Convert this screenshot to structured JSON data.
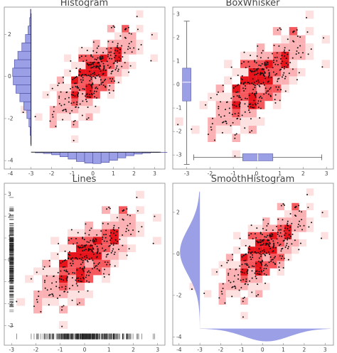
{
  "chart_data": [
    {
      "type": "heatmap",
      "title": "Histogram",
      "marginal": "histogram",
      "xlim": [
        -4.3,
        3.5
      ],
      "ylim": [
        -4.4,
        3.3
      ],
      "xticks": [
        "-4",
        "-3",
        "-2",
        "-1",
        "0",
        "1",
        "2",
        "3"
      ],
      "yticks": [
        "-4",
        "-2",
        "0",
        "2"
      ]
    },
    {
      "type": "heatmap",
      "title": "BoxWhisker",
      "marginal": "box-whisker",
      "xlim": [
        -3.6,
        3.3
      ],
      "ylim": [
        -3.6,
        3.3
      ],
      "xticks": [
        "-3",
        "-2",
        "-1",
        "0",
        "1",
        "2",
        "3"
      ],
      "yticks": [
        "-3",
        "-2",
        "-1",
        "0",
        "1",
        "2",
        "3"
      ]
    },
    {
      "type": "heatmap",
      "title": "Lines",
      "marginal": "rug-lines",
      "xlim": [
        -3.3,
        3.3
      ],
      "ylim": [
        -3.9,
        3.5
      ],
      "xticks": [
        "-3",
        "-2",
        "-1",
        "0",
        "1",
        "2",
        "3"
      ],
      "yticks": [
        "-3",
        "-2",
        "-1",
        "0",
        "1",
        "2",
        "3"
      ]
    },
    {
      "type": "heatmap",
      "title": "SmoothHistogram",
      "marginal": "smooth-density",
      "xlim": [
        -4.3,
        3.4
      ],
      "ylim": [
        -4.4,
        3.4
      ],
      "xticks": [
        "-4",
        "-3",
        "-2",
        "-1",
        "0",
        "1",
        "2",
        "3"
      ],
      "yticks": [
        "-4",
        "-2",
        "0",
        "2"
      ]
    }
  ],
  "colors": {
    "heat_dark": "#e8141c",
    "heat_mid": "#f5595e",
    "heat_light": "#fbb1b3",
    "heat_faint": "#fde0e0",
    "marginal_fill": "#9b9fe6",
    "marginal_stroke": "#4a4a9e",
    "points": "#111111",
    "frame": "#888888"
  }
}
